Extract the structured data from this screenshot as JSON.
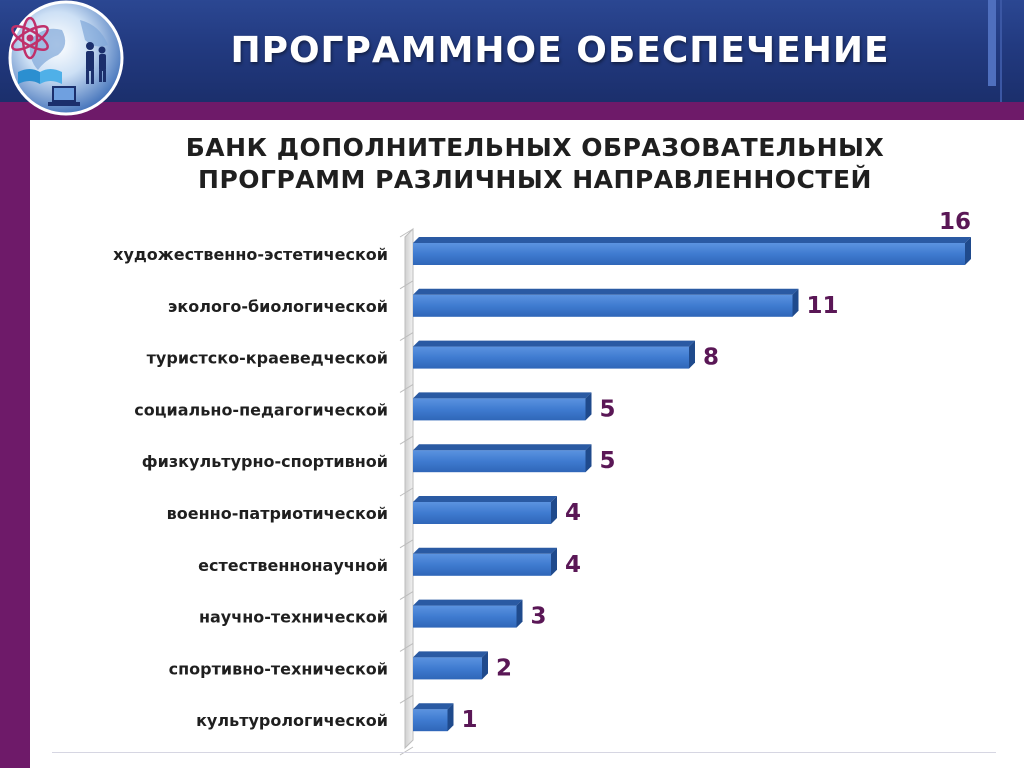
{
  "header": {
    "title": "ПРОГРАММНОЕ ОБЕСПЕЧЕНИЕ"
  },
  "colors": {
    "header_blue": "#223a80",
    "band_purple": "#6e1a69",
    "bar_blue": "#3f7bd0",
    "value_label": "#5a1756"
  },
  "icons": {
    "logo": "globe-atom-people-logo"
  },
  "chart_data": {
    "type": "bar",
    "orientation": "horizontal",
    "style": "3d",
    "title": "БАНК ДОПОЛНИТЕЛЬНЫХ ОБРАЗОВАТЕЛЬНЫХ ПРОГРАММ РАЗЛИЧНЫХ НАПРАВЛЕННОСТЕЙ",
    "title_lines": [
      "БАНК ДОПОЛНИТЕЛЬНЫХ ОБРАЗОВАТЕЛЬНЫХ",
      "ПРОГРАММ РАЗЛИЧНЫХ НАПРАВЛЕННОСТЕЙ"
    ],
    "categories": [
      "художественно-эстетической",
      "эколого-биологической",
      "туристско-краеведческой",
      "социально-педагогической",
      "физкультурно-спортивной",
      "военно-патриотической",
      "естественнонаучной",
      "научно-технической",
      "спортивно-технической",
      "культурологической"
    ],
    "values": [
      16,
      11,
      8,
      5,
      5,
      4,
      4,
      3,
      2,
      1
    ],
    "value_labels": [
      "16",
      "11",
      "8",
      "5",
      "5",
      "4",
      "4",
      "3",
      "2",
      "1"
    ],
    "xlim": [
      0,
      16
    ],
    "grid": false,
    "legend": "none",
    "bar_color": "#3f7bd0"
  }
}
